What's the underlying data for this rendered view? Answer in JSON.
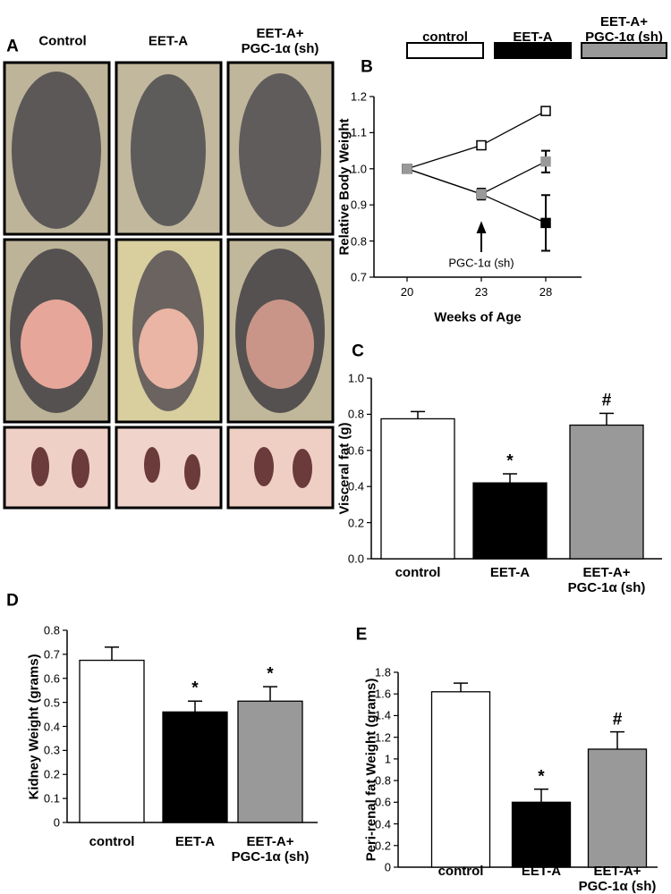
{
  "panel_a": {
    "label": "A",
    "columns": [
      "Control",
      "EET-A",
      "EET-A+\nPGC-1α (sh)"
    ]
  },
  "legend": [
    {
      "name": "control",
      "color": "#ffffff"
    },
    {
      "name": "EET-A",
      "color": "#000000"
    },
    {
      "name": "EET-A+\nPGC-1α (sh)",
      "color": "#999999"
    }
  ],
  "chart_data": [
    {
      "type": "line",
      "label": "B",
      "ylabel": "Relative Body Weight",
      "xlabel": "Weeks of Age",
      "categories": [
        "20",
        "23",
        "28"
      ],
      "annotation": "PGC-1α (sh)",
      "ylim": [
        0.7,
        1.2
      ],
      "yticks": [
        0.7,
        0.8,
        0.9,
        {
          "value": 1,
          "label": "1.0"
        },
        1.1,
        1.2
      ],
      "series": [
        {
          "name": "control",
          "color": "#ffffff",
          "values": [
            1.0,
            1.065,
            1.16
          ],
          "errors": [
            0,
            0.006,
            0.006
          ]
        },
        {
          "name": "EET-A",
          "color": "#000000",
          "values": [
            1.0,
            0.93,
            0.85
          ],
          "errors": [
            0,
            0.015,
            0.077
          ]
        },
        {
          "name": "EET-A+ PGC-1α (sh)",
          "color": "#999999",
          "values": [
            1.0,
            0.93,
            1.02
          ],
          "errors": [
            0,
            0.015,
            0.03
          ]
        }
      ]
    },
    {
      "type": "bar",
      "label": "C",
      "ylabel": "Visceral fat (g)",
      "categories": [
        "control",
        "EET-A",
        "EET-A+\nPGC-1α (sh)"
      ],
      "colors": [
        "#ffffff",
        "#000000",
        "#999999"
      ],
      "values": [
        0.775,
        0.42,
        0.74
      ],
      "errors": [
        0.04,
        0.05,
        0.065
      ],
      "significance": [
        null,
        "*",
        "#"
      ],
      "ylim": [
        0,
        1
      ],
      "yticks": [
        {
          "value": 0,
          "label": "0.0"
        },
        0.2,
        0.4,
        0.6,
        0.8,
        {
          "value": 1,
          "label": "1.0"
        }
      ]
    },
    {
      "type": "bar",
      "label": "D",
      "ylabel": "Kidney Weight (grams)",
      "categories": [
        "control",
        "EET-A",
        "EET-A+\nPGC-1α (sh)"
      ],
      "colors": [
        "#ffffff",
        "#000000",
        "#999999"
      ],
      "values": [
        0.675,
        0.46,
        0.505
      ],
      "errors": [
        0.055,
        0.045,
        0.06
      ],
      "significance": [
        null,
        "*",
        "*"
      ],
      "ylim": [
        0,
        0.8
      ],
      "yticks": [
        0,
        0.1,
        0.2,
        0.3,
        0.4,
        0.5,
        0.6,
        0.7,
        0.8
      ]
    },
    {
      "type": "bar",
      "label": "E",
      "ylabel": "Peri-renal fat Weight (grams)",
      "categories": [
        "control",
        "EET-A",
        "EET-A+\nPGC-1α (sh)"
      ],
      "colors": [
        "#ffffff",
        "#000000",
        "#999999"
      ],
      "values": [
        1.62,
        0.6,
        1.09
      ],
      "errors": [
        0.08,
        0.12,
        0.16
      ],
      "significance": [
        null,
        "*",
        "#"
      ],
      "ylim": [
        0,
        1.8
      ],
      "yticks": [
        0,
        0.2,
        0.4,
        0.6,
        0.8,
        1,
        1.2,
        1.4,
        1.6,
        1.8
      ]
    }
  ]
}
